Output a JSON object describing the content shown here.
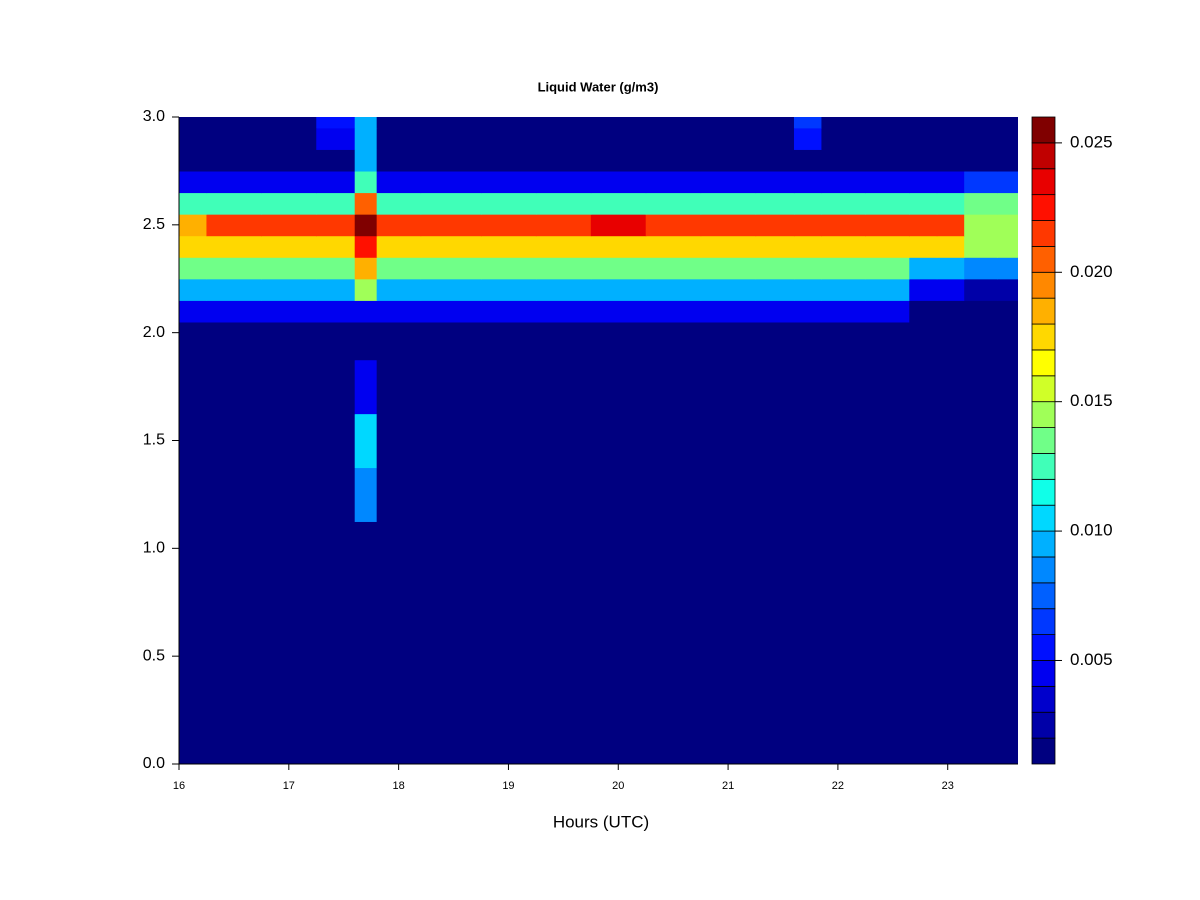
{
  "chart_data": {
    "type": "contour",
    "title": "Liquid Water (g/m3)",
    "xlabel": "Hours (UTC)",
    "xlim": [
      16,
      23.64
    ],
    "xticks": [
      16,
      17,
      18,
      19,
      20,
      21,
      22,
      23
    ],
    "ylim": [
      0,
      3
    ],
    "yticks": [
      {
        "value": 0,
        "label": "0.0"
      },
      {
        "value": 0.5,
        "label": "0.5"
      },
      {
        "value": 1,
        "label": "1.0"
      },
      {
        "value": 1.5,
        "label": "1.5"
      },
      {
        "value": 2,
        "label": "2.0"
      },
      {
        "value": 2.5,
        "label": "2.5"
      },
      {
        "value": 3,
        "label": "3.0"
      }
    ],
    "x": [
      16.0,
      16.5,
      17.0,
      17.5,
      17.7,
      17.9,
      18.5,
      19.0,
      19.5,
      20.0,
      20.5,
      21.0,
      21.5,
      21.7,
      22.0,
      22.5,
      22.8,
      23.0,
      23.3,
      23.6
    ],
    "y": [
      0,
      0.5,
      1.0,
      1.25,
      1.5,
      1.75,
      2.0,
      2.1,
      2.2,
      2.3,
      2.4,
      2.5,
      2.6,
      2.7,
      2.8,
      2.9,
      3.0
    ],
    "z": [
      [
        0.001,
        0.001,
        0.001,
        0.001,
        0.001,
        0.001,
        0.001,
        0.001,
        0.001,
        0.001,
        0.001,
        0.001,
        0.001,
        0.001,
        0.001,
        0.001,
        0.001,
        0.001,
        0.001,
        0.001
      ],
      [
        0.001,
        0.001,
        0.001,
        0.001,
        0.001,
        0.001,
        0.001,
        0.001,
        0.001,
        0.001,
        0.001,
        0.001,
        0.001,
        0.001,
        0.001,
        0.001,
        0.001,
        0.001,
        0.001,
        0.001
      ],
      [
        0.001,
        0.001,
        0.001,
        0.001,
        0.001,
        0.001,
        0.001,
        0.001,
        0.001,
        0.001,
        0.001,
        0.001,
        0.001,
        0.001,
        0.001,
        0.001,
        0.001,
        0.001,
        0.001,
        0.001
      ],
      [
        0.001,
        0.001,
        0.001,
        0.001,
        0.008,
        0.001,
        0.001,
        0.001,
        0.001,
        0.001,
        0.001,
        0.001,
        0.001,
        0.001,
        0.001,
        0.001,
        0.001,
        0.001,
        0.001,
        0.001
      ],
      [
        0.001,
        0.001,
        0.001,
        0.001,
        0.01,
        0.001,
        0.001,
        0.001,
        0.001,
        0.001,
        0.001,
        0.001,
        0.001,
        0.001,
        0.001,
        0.001,
        0.001,
        0.001,
        0.001,
        0.001
      ],
      [
        0.001,
        0.001,
        0.001,
        0.001,
        0.004,
        0.001,
        0.001,
        0.001,
        0.001,
        0.001,
        0.001,
        0.001,
        0.001,
        0.001,
        0.001,
        0.001,
        0.001,
        0.001,
        0.001,
        0.001
      ],
      [
        0.001,
        0.001,
        0.001,
        0.001,
        0.001,
        0.001,
        0.001,
        0.001,
        0.001,
        0.001,
        0.001,
        0.001,
        0.001,
        0.001,
        0.001,
        0.001,
        0.001,
        0.001,
        0.001,
        0.001
      ],
      [
        0.004,
        0.004,
        0.004,
        0.004,
        0.004,
        0.004,
        0.004,
        0.004,
        0.004,
        0.004,
        0.004,
        0.004,
        0.004,
        0.004,
        0.004,
        0.004,
        0.001,
        0.001,
        0.001,
        0.001
      ],
      [
        0.009,
        0.009,
        0.009,
        0.009,
        0.014,
        0.009,
        0.009,
        0.009,
        0.009,
        0.009,
        0.009,
        0.009,
        0.009,
        0.009,
        0.009,
        0.009,
        0.004,
        0.004,
        0.002,
        0.002
      ],
      [
        0.013,
        0.013,
        0.013,
        0.013,
        0.018,
        0.013,
        0.013,
        0.013,
        0.013,
        0.013,
        0.013,
        0.013,
        0.013,
        0.013,
        0.013,
        0.013,
        0.009,
        0.009,
        0.008,
        0.008
      ],
      [
        0.017,
        0.017,
        0.017,
        0.017,
        0.022,
        0.017,
        0.017,
        0.017,
        0.017,
        0.017,
        0.017,
        0.017,
        0.017,
        0.017,
        0.017,
        0.017,
        0.017,
        0.017,
        0.014,
        0.014
      ],
      [
        0.018,
        0.021,
        0.021,
        0.021,
        0.0255,
        0.021,
        0.021,
        0.021,
        0.021,
        0.023,
        0.021,
        0.021,
        0.021,
        0.021,
        0.021,
        0.021,
        0.021,
        0.021,
        0.015,
        0.015
      ],
      [
        0.012,
        0.012,
        0.012,
        0.012,
        0.02,
        0.012,
        0.012,
        0.012,
        0.012,
        0.012,
        0.012,
        0.012,
        0.012,
        0.012,
        0.012,
        0.012,
        0.012,
        0.012,
        0.013,
        0.013
      ],
      [
        0.004,
        0.004,
        0.004,
        0.004,
        0.012,
        0.004,
        0.004,
        0.004,
        0.004,
        0.004,
        0.004,
        0.004,
        0.004,
        0.004,
        0.004,
        0.004,
        0.004,
        0.004,
        0.006,
        0.006
      ],
      [
        0.001,
        0.001,
        0.001,
        0.001,
        0.009,
        0.001,
        0.001,
        0.001,
        0.001,
        0.001,
        0.001,
        0.001,
        0.001,
        0.001,
        0.001,
        0.001,
        0.001,
        0.001,
        0.001,
        0.001
      ],
      [
        0.001,
        0.001,
        0.001,
        0.004,
        0.009,
        0.001,
        0.001,
        0.001,
        0.001,
        0.001,
        0.001,
        0.001,
        0.001,
        0.005,
        0.001,
        0.001,
        0.001,
        0.001,
        0.001,
        0.001
      ],
      [
        0.001,
        0.001,
        0.001,
        0.005,
        0.009,
        0.001,
        0.001,
        0.001,
        0.001,
        0.001,
        0.001,
        0.001,
        0.001,
        0.006,
        0.001,
        0.001,
        0.001,
        0.001,
        0.001,
        0.001
      ]
    ],
    "zlim": [
      0.001,
      0.026
    ],
    "zticks": [
      0.005,
      {
        "value": 0.01,
        "label": "0.010"
      },
      0.015,
      {
        "value": 0.02,
        "label": "0.020"
      },
      0.025
    ],
    "colors": [
      "#000080",
      "#0000a8",
      "#0000cc",
      "#0000f0",
      "#0010ff",
      "#0038ff",
      "#0060ff",
      "#0088ff",
      "#00b0ff",
      "#00d8ff",
      "#10ffe8",
      "#40ffb8",
      "#70ff88",
      "#a0ff58",
      "#d0ff28",
      "#ffff00",
      "#ffd800",
      "#ffb000",
      "#ff8800",
      "#ff6000",
      "#ff3800",
      "#ff1000",
      "#e80000",
      "#c00000",
      "#800000"
    ]
  }
}
